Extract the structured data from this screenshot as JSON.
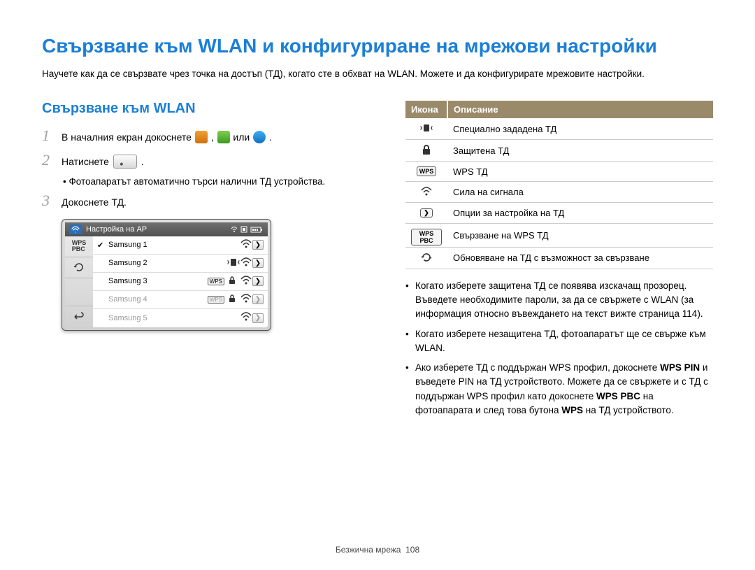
{
  "page_title": "Свързване към WLAN и конфигуриране на мрежови настройки",
  "intro": "Научете как да се свързвате чрез точка на достъп (ТД), когато сте в обхват на WLAN. Можете и да конфигурирате мрежовите настройки.",
  "subheader": "Свързване към WLAN",
  "steps": {
    "s1a": "В началния екран докоснете ",
    "s1b": ", ",
    "s1c": " или ",
    "s1d": ".",
    "s2a": "Натиснете ",
    "s2b": ".",
    "s2_sub": "Фотоапаратът автоматично търси налични ТД устройства.",
    "s3": "Докоснете ТД."
  },
  "device": {
    "title": "Настройка на AP",
    "side": {
      "wps": "WPS",
      "pbc": "PBC"
    },
    "rows": [
      {
        "name": "Samsung 1",
        "checked": true,
        "badges": [],
        "lock": false,
        "dim": false
      },
      {
        "name": "Samsung 2",
        "checked": false,
        "badges": [
          "adhoc"
        ],
        "lock": false,
        "dim": false
      },
      {
        "name": "Samsung 3",
        "checked": false,
        "badges": [
          "wps"
        ],
        "lock": true,
        "dim": false
      },
      {
        "name": "Samsung 4",
        "checked": false,
        "badges": [
          "wps"
        ],
        "lock": true,
        "dim": true
      },
      {
        "name": "Samsung 5",
        "checked": false,
        "badges": [],
        "lock": false,
        "dim": true
      }
    ]
  },
  "table": {
    "head_icon": "Икона",
    "head_desc": "Описание",
    "rows": [
      {
        "icon": "adhoc",
        "label": "Специално зададена ТД"
      },
      {
        "icon": "lock",
        "label": "Защитена ТД"
      },
      {
        "icon": "wps",
        "label": "WPS ТД"
      },
      {
        "icon": "signal",
        "label": "Сила на сигнала"
      },
      {
        "icon": "arrow",
        "label": "Опции за настройка на ТД"
      },
      {
        "icon": "wpspbc",
        "label": "Свързване на WPS ТД"
      },
      {
        "icon": "refresh",
        "label": "Обновяване на ТД с възможност за свързване"
      }
    ]
  },
  "notes": {
    "n1": "Когато изберете защитена ТД се появява изскачащ прозорец. Въведете необходимите пароли, за да се свържете с WLAN (за информация относно въвеждането на текст вижте страница 114).",
    "n2": "Когато изберете незащитена ТД, фотоапаратът ще се свърже към WLAN.",
    "n3a": "Ако изберете ТД с поддържан WPS профил, докоснете ",
    "n3b": "WPS PIN",
    "n3c": " и въведете PIN на ТД устройството. Можете да се свържете и с ТД с поддържан WPS профил като докоснете ",
    "n3d": "WPS PBC",
    "n3e": " на фотоапарата и след това бутона ",
    "n3f": "WPS",
    "n3g": " на ТД устройството."
  },
  "footer_label": "Безжична мрежа",
  "footer_page": "108",
  "colors": {
    "accent_blue": "#1b7fd6",
    "table_header": "#9a8a6a"
  }
}
